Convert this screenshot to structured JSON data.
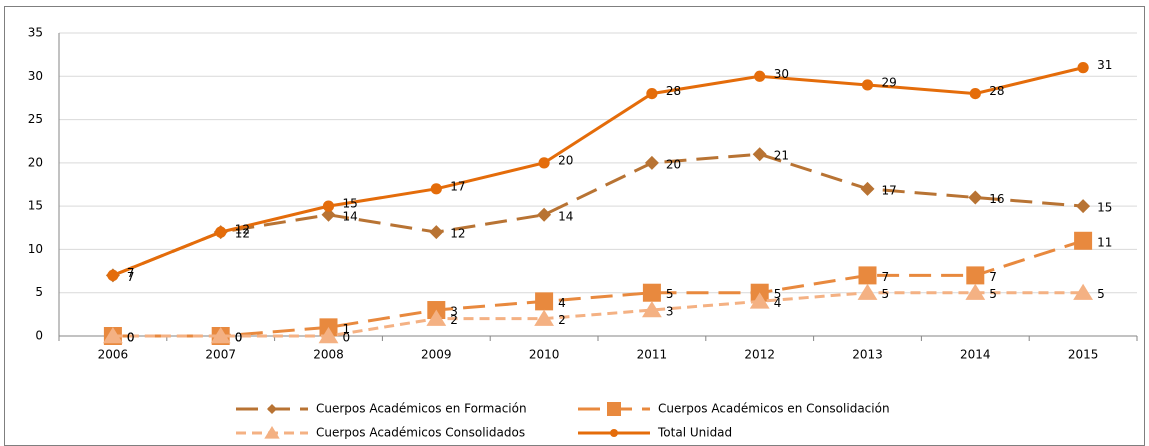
{
  "chart_data": {
    "type": "line",
    "categories": [
      "2006",
      "2007",
      "2008",
      "2009",
      "2010",
      "2011",
      "2012",
      "2013",
      "2014",
      "2015"
    ],
    "series": [
      {
        "name": "Cuerpos Académicos en Formación",
        "color": "#b87333",
        "values": [
          7,
          12,
          14,
          12,
          14,
          20,
          21,
          17,
          16,
          15
        ]
      },
      {
        "name": "Cuerpos Académicos en Consolidación",
        "color": "#e8893e",
        "values": [
          0,
          0,
          1,
          3,
          4,
          5,
          5,
          7,
          7,
          11
        ]
      },
      {
        "name": "Cuerpos Académicos Consolidados",
        "color": "#f4b183",
        "values": [
          0,
          0,
          0,
          2,
          2,
          3,
          4,
          5,
          5,
          5
        ]
      },
      {
        "name": "Total Unidad",
        "color": "#e46c0a",
        "values": [
          7,
          12,
          15,
          17,
          20,
          28,
          30,
          29,
          28,
          31
        ]
      }
    ],
    "ylim": [
      0,
      35
    ],
    "yticks": [
      0,
      5,
      10,
      15,
      20,
      25,
      30,
      35
    ],
    "grid": true,
    "legend": "bottom"
  }
}
